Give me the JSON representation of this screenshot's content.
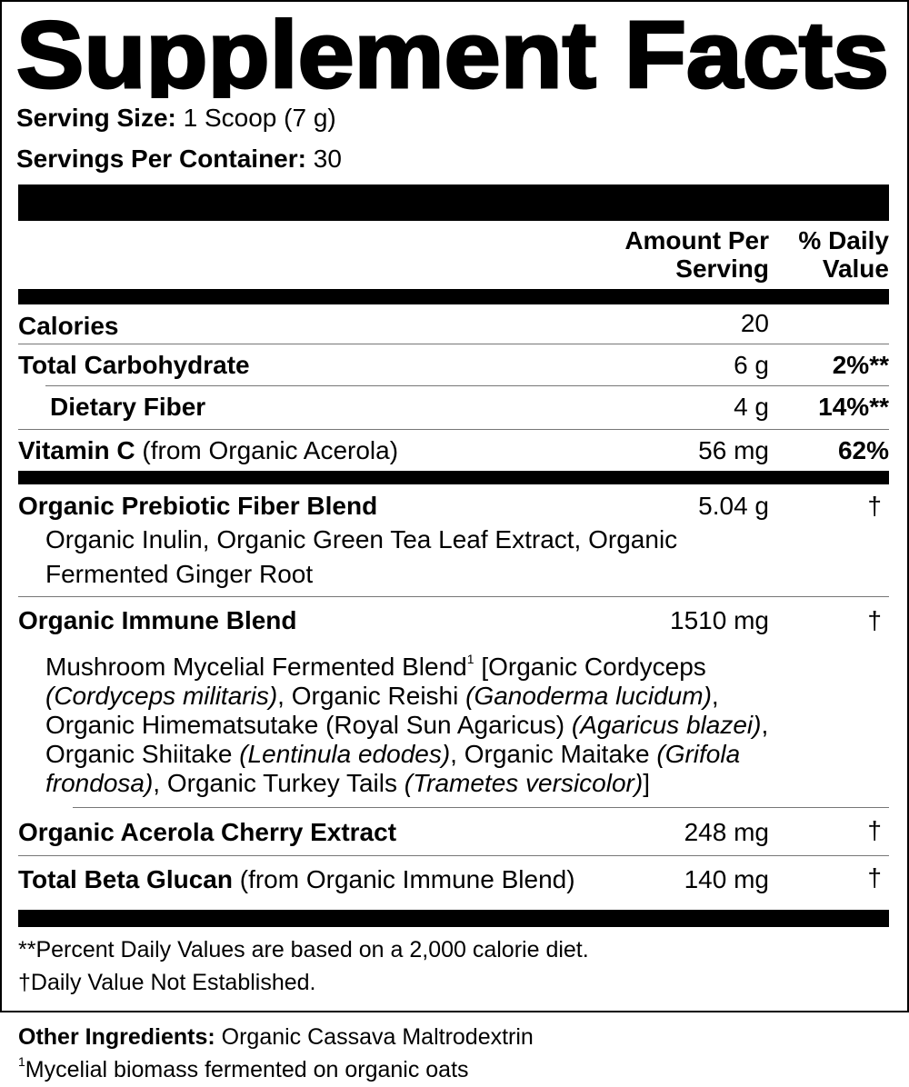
{
  "title": "Supplement Facts",
  "serving_size": {
    "label": "Serving Size:",
    "value": "1 Scoop (7 g)"
  },
  "servings_per_container": {
    "label": "Servings Per Container:",
    "value": "30"
  },
  "header": {
    "amount_1": "Amount Per",
    "amount_2": "Serving",
    "dv_1": "% Daily",
    "dv_2": "Value"
  },
  "rows": [
    {
      "name": "Calories",
      "amount": "20",
      "dv": ""
    },
    {
      "name": "Total Carbohydrate",
      "amount": "6 g",
      "dv": "2%**"
    },
    {
      "name": "Dietary Fiber",
      "amount": "4 g",
      "dv": "14%**"
    },
    {
      "name": "Vitamin C",
      "note": "(from Organic Acerola)",
      "amount": "56 mg",
      "dv": "62%"
    }
  ],
  "prebiotic": {
    "name": "Organic Prebiotic Fiber Blend",
    "amount": "5.04 g",
    "dv": "†",
    "line1": "Organic Inulin, Organic Green Tea Leaf Extract, Organic",
    "line2": "Fermented Ginger Root"
  },
  "immune": {
    "name": "Organic Immune Blend",
    "amount": "1510 mg",
    "dv": "†",
    "p": [
      "Mushroom Mycelial Fermented Blend",
      "1",
      " [Organic Cordyceps",
      "(Cordyceps militaris)",
      ", Organic Reishi ",
      "(Ganoderma lucidum)",
      ",",
      "Organic Himematsutake (Royal Sun Agaricus) ",
      "(Agaricus blazei)",
      ",",
      "Organic Shiitake ",
      "(Lentinula edodes)",
      ", Organic Maitake ",
      "(Grifola",
      "frondosa)",
      ", Organic Turkey Tails ",
      "(Trametes versicolor)",
      "]"
    ]
  },
  "acerola": {
    "name": "Organic Acerola Cherry Extract",
    "amount": "248 mg",
    "dv": "†"
  },
  "beta": {
    "name": "Total Beta Glucan",
    "note": "(from Organic Immune Blend)",
    "amount": "140 mg",
    "dv": "†"
  },
  "footnotes": [
    "**Percent Daily Values are based on a 2,000 calorie diet.",
    "†Daily Value Not Established."
  ],
  "other": {
    "label": "Other Ingredients:",
    "value": "Organic Cassava Maltrodextrin"
  },
  "footnote_1": {
    "mark": "1",
    "text": "Mycelial biomass fermented on organic oats"
  }
}
